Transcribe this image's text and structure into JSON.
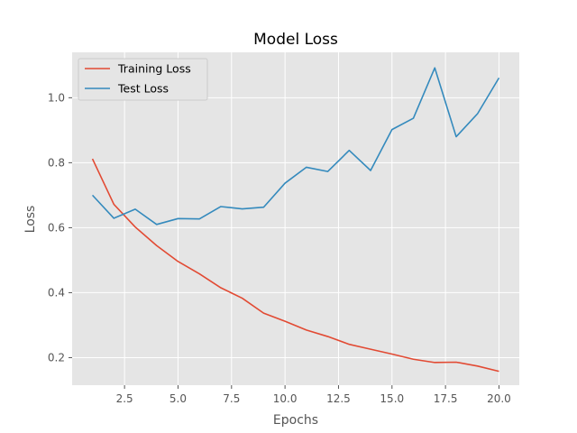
{
  "chart_data": {
    "type": "line",
    "title": "Model Loss",
    "xlabel": "Epochs",
    "ylabel": "Loss",
    "xlim": [
      0.05,
      20.95
    ],
    "ylim": [
      0.1152,
      1.1398
    ],
    "xticks": [
      2.5,
      5.0,
      7.5,
      10.0,
      12.5,
      15.0,
      17.5,
      20.0
    ],
    "xtick_labels": [
      "2.5",
      "5.0",
      "7.5",
      "10.0",
      "12.5",
      "15.0",
      "17.5",
      "20.0"
    ],
    "yticks": [
      0.2,
      0.4,
      0.6,
      0.8,
      1.0
    ],
    "ytick_labels": [
      "0.2",
      "0.4",
      "0.6",
      "0.8",
      "1.0"
    ],
    "grid": true,
    "legend_position": "top-left",
    "x": [
      1,
      2,
      3,
      4,
      5,
      6,
      7,
      8,
      9,
      10,
      11,
      12,
      13,
      14,
      15,
      16,
      17,
      18,
      19,
      20
    ],
    "series": [
      {
        "name": "Training Loss",
        "color": "#E24A33",
        "values": [
          0.812,
          0.672,
          0.602,
          0.545,
          0.496,
          0.458,
          0.415,
          0.383,
          0.337,
          0.312,
          0.285,
          0.265,
          0.241,
          0.226,
          0.211,
          0.195,
          0.185,
          0.186,
          0.174,
          0.158
        ]
      },
      {
        "name": "Test Loss",
        "color": "#348ABD",
        "values": [
          0.7,
          0.629,
          0.657,
          0.61,
          0.628,
          0.627,
          0.665,
          0.658,
          0.663,
          0.737,
          0.786,
          0.773,
          0.838,
          0.776,
          0.902,
          0.937,
          1.092,
          0.88,
          0.951,
          1.061
        ]
      }
    ]
  }
}
